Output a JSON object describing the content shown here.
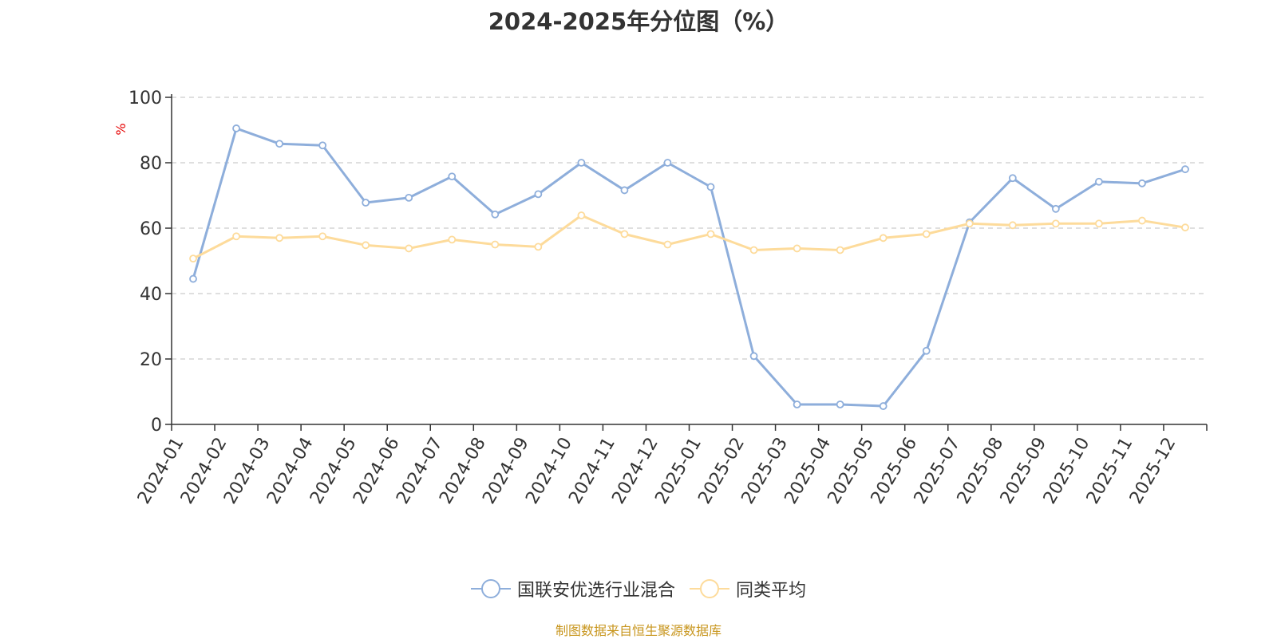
{
  "chart_data": {
    "type": "line",
    "title": "2024-2025年分位图（%）",
    "ylabel": "%",
    "ylim": [
      0,
      100
    ],
    "yticks": [
      0,
      20,
      40,
      60,
      80,
      100
    ],
    "grid": true,
    "legend_position": "bottom-center",
    "categories": [
      "2024-01",
      "2024-02",
      "2024-03",
      "2024-04",
      "2024-05",
      "2024-06",
      "2024-07",
      "2024-08",
      "2024-09",
      "2024-10",
      "2024-11",
      "2024-12",
      "2025-01",
      "2025-02",
      "2025-03",
      "2025-04",
      "2025-05",
      "2025-06",
      "2025-07",
      "2025-08",
      "2025-09",
      "2025-10",
      "2025-11",
      "2025-12"
    ],
    "series": [
      {
        "name": "国联安优选行业混合",
        "color": "#8eaedb",
        "values": [
          44.5,
          90.5,
          85.8,
          85.3,
          67.8,
          69.3,
          75.8,
          64.2,
          70.4,
          80.0,
          71.6,
          80.0,
          72.6,
          20.9,
          6.1,
          6.1,
          5.6,
          22.5,
          61.8,
          75.3,
          65.9,
          74.2,
          73.7,
          78.0
        ]
      },
      {
        "name": "同类平均",
        "color": "#fddb9b",
        "values": [
          50.7,
          57.5,
          57.0,
          57.5,
          54.8,
          53.8,
          56.5,
          55.0,
          54.3,
          63.9,
          58.2,
          55.0,
          58.2,
          53.3,
          53.8,
          53.3,
          57.0,
          58.2,
          61.4,
          60.9,
          61.4,
          61.4,
          62.3,
          60.2
        ]
      }
    ]
  },
  "footer": {
    "source": "制图数据来自恒生聚源数据库"
  },
  "colors": {
    "axis": "#333333",
    "grid": "#cccccc",
    "ylabel": "#e60000",
    "source": "#c8961e"
  }
}
